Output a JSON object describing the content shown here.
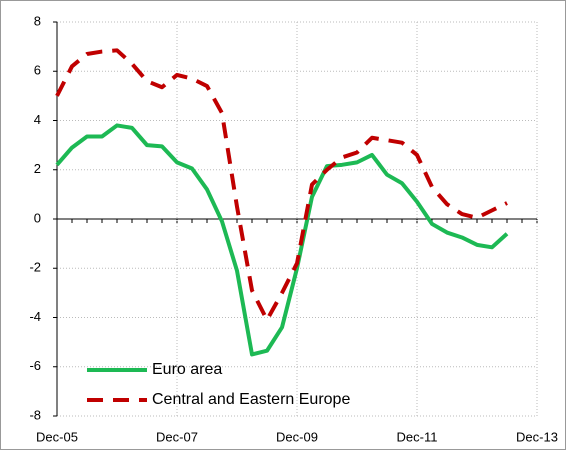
{
  "chart_data": {
    "type": "line",
    "categories": [
      "Dec-05",
      null,
      null,
      null,
      null,
      null,
      null,
      null,
      "Dec-07",
      null,
      null,
      null,
      null,
      null,
      null,
      null,
      "Dec-09",
      null,
      null,
      null,
      null,
      null,
      null,
      null,
      "Dec-11",
      null,
      null,
      null,
      null,
      null,
      null,
      null,
      "Dec-13"
    ],
    "series": [
      {
        "name": "Euro area",
        "color": "#1db954",
        "dash": false,
        "values": [
          2.2,
          2.9,
          3.35,
          3.35,
          3.8,
          3.7,
          3.0,
          2.95,
          2.3,
          2.05,
          1.2,
          -0.1,
          -2.1,
          -5.5,
          -5.35,
          -4.4,
          -2.0,
          0.9,
          2.15,
          2.2,
          2.3,
          2.6,
          1.8,
          1.45,
          0.7,
          -0.2,
          -0.55,
          -0.75,
          -1.05,
          -1.15,
          -0.6,
          null,
          null
        ]
      },
      {
        "name": "Central and Eastern Europe",
        "color": "#c00000",
        "dash": true,
        "values": [
          5.0,
          6.2,
          6.7,
          6.8,
          6.85,
          6.3,
          5.6,
          5.35,
          5.85,
          5.7,
          5.4,
          4.3,
          0.5,
          -2.9,
          -4.1,
          -3.0,
          -1.8,
          1.4,
          2.0,
          2.5,
          2.7,
          3.3,
          3.2,
          3.1,
          2.6,
          1.3,
          0.6,
          0.2,
          0.05,
          0.35,
          0.65,
          null,
          null
        ]
      }
    ],
    "ylim": [
      -8,
      8
    ],
    "yticks": [
      -8,
      -6,
      -4,
      -2,
      0,
      2,
      4,
      6,
      8
    ],
    "grid": true,
    "legend": "lower left"
  }
}
